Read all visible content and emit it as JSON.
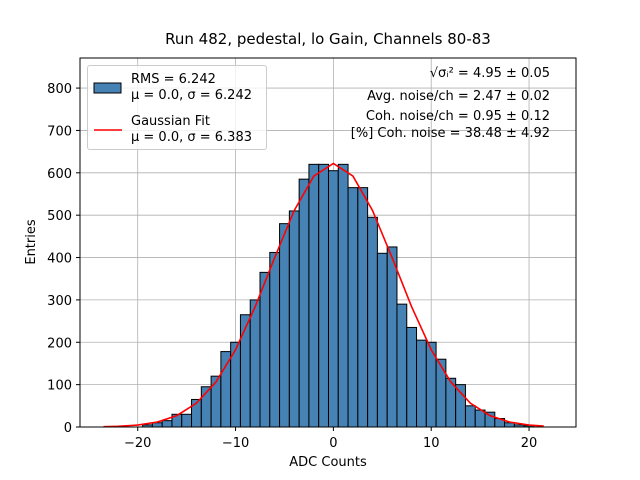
{
  "chart_data": {
    "type": "histogram",
    "title": "Run 482, pedestal, lo Gain, Channels 80-83",
    "xlabel": "ADC Counts",
    "ylabel": "Entries",
    "xlim": [
      -25.9,
      24.8
    ],
    "ylim": [
      0,
      871
    ],
    "xticks": [
      {
        "value": -20,
        "label": "−20"
      },
      {
        "value": -10,
        "label": "−10"
      },
      0,
      10,
      20
    ],
    "yticks": [
      0,
      100,
      200,
      300,
      400,
      500,
      600,
      700,
      800
    ],
    "grid": true,
    "bins": [
      -19.5,
      -18.5,
      -17.5,
      -16.5,
      -15.5,
      -14.5,
      -13.5,
      -12.5,
      -11.5,
      -10.5,
      -9.5,
      -8.5,
      -7.5,
      -6.5,
      -5.5,
      -4.5,
      -3.5,
      -2.5,
      -1.5,
      -0.5,
      0.5,
      1.5,
      2.5,
      3.5,
      4.5,
      5.5,
      6.5,
      7.5,
      8.5,
      9.5,
      10.5,
      11.5,
      12.5,
      13.5,
      14.5,
      15.5,
      16.5,
      17.5,
      18.5,
      19.5,
      20.5
    ],
    "series": [
      {
        "type": "histogram",
        "name": "RMS = 6.242\nμ = 0.0, σ = 6.242",
        "color": "#4682b4",
        "edgecolor": "#000000",
        "values": [
          5,
          10,
          15,
          30,
          30,
          65,
          95,
          120,
          178,
          200,
          265,
          300,
          365,
          412,
          480,
          510,
          585,
          620,
          620,
          605,
          620,
          565,
          565,
          495,
          410,
          425,
          290,
          235,
          205,
          200,
          160,
          115,
          100,
          50,
          40,
          35,
          20,
          10,
          5,
          3
        ]
      },
      {
        "type": "line",
        "name": "Gaussian Fit\nμ = 0.0, σ = 6.383",
        "color": "#ff0000",
        "x": [
          -23.5,
          -22,
          -20,
          -18,
          -16,
          -14,
          -12,
          -10,
          -8,
          -6,
          -4,
          -2,
          0,
          2,
          4,
          6,
          8,
          10,
          12,
          14,
          16,
          18,
          20,
          21.5
        ],
        "values": [
          0.7,
          1.6,
          4.6,
          11.7,
          26.9,
          56.2,
          106.3,
          182.3,
          283.6,
          399.9,
          511.1,
          592.2,
          622,
          592.2,
          511.1,
          399.9,
          283.6,
          182.3,
          106.3,
          56.2,
          26.9,
          11.7,
          4.6,
          2.1
        ]
      }
    ],
    "annotations": [
      "√σᵢ² = 4.95 ± 0.05",
      "Avg. noise/ch = 2.47 ± 0.02",
      "Coh. noise/ch = 0.95 ± 0.12",
      "[%] Coh. noise = 38.48 ± 4.92"
    ]
  }
}
